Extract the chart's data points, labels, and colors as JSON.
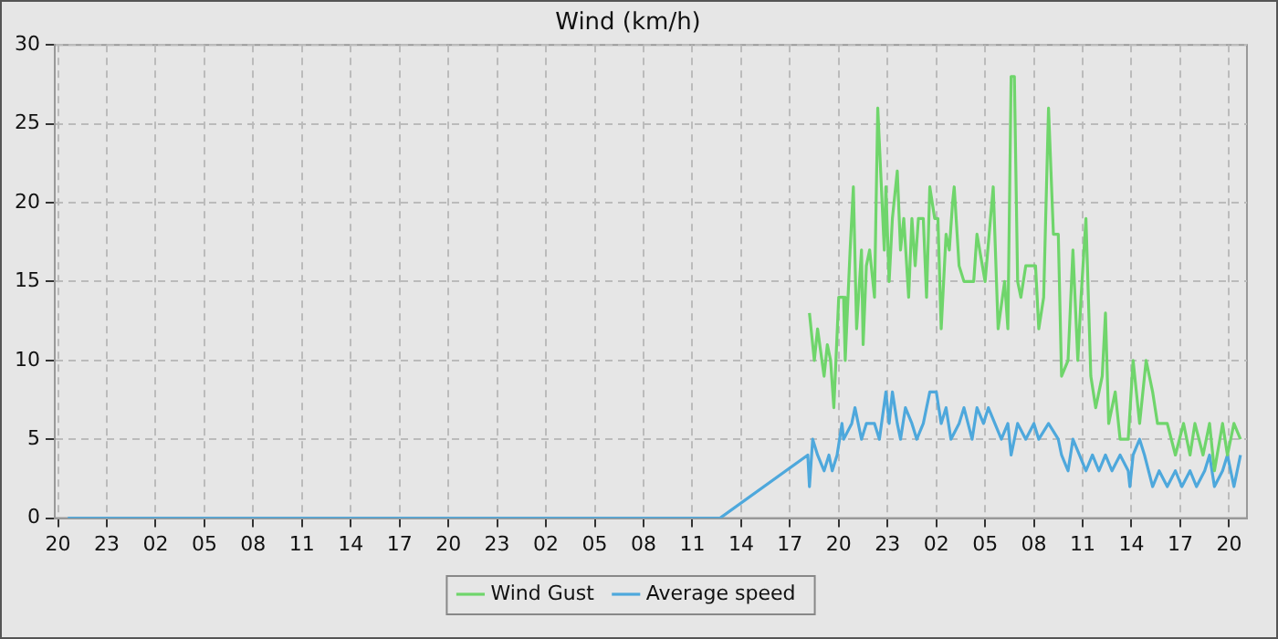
{
  "chart_data": {
    "type": "line",
    "title": "Wind (km/h)",
    "xlim": [
      "--01-01T19:48",
      "--01-04T21:06"
    ],
    "ylim": [
      0,
      30
    ],
    "xticks": [
      {
        "value": "--01-01T20:00",
        "label": "20"
      },
      {
        "value": "--01-01T23:00",
        "label": "23"
      },
      {
        "value": "--01-02T02:00",
        "label": "02"
      },
      {
        "value": "--01-02T05:00",
        "label": "05"
      },
      {
        "value": "--01-02T08:00",
        "label": "08"
      },
      {
        "value": "--01-02T11:00",
        "label": "11"
      },
      {
        "value": "--01-02T14:00",
        "label": "14"
      },
      {
        "value": "--01-02T17:00",
        "label": "17"
      },
      {
        "value": "--01-02T20:00",
        "label": "20"
      },
      {
        "value": "--01-02T23:00",
        "label": "23"
      },
      {
        "value": "--01-03T02:00",
        "label": "02"
      },
      {
        "value": "--01-03T05:00",
        "label": "05"
      },
      {
        "value": "--01-03T08:00",
        "label": "08"
      },
      {
        "value": "--01-03T11:00",
        "label": "11"
      },
      {
        "value": "--01-03T14:00",
        "label": "14"
      },
      {
        "value": "--01-03T17:00",
        "label": "17"
      },
      {
        "value": "--01-03T20:00",
        "label": "20"
      },
      {
        "value": "--01-03T23:00",
        "label": "23"
      },
      {
        "value": "--01-04T02:00",
        "label": "02"
      },
      {
        "value": "--01-04T05:00",
        "label": "05"
      },
      {
        "value": "--01-04T08:00",
        "label": "08"
      },
      {
        "value": "--01-04T11:00",
        "label": "11"
      },
      {
        "value": "--01-04T14:00",
        "label": "14"
      },
      {
        "value": "--01-04T17:00",
        "label": "17"
      },
      {
        "value": "--01-04T20:00",
        "label": "20"
      }
    ],
    "yticks": [
      0,
      5,
      10,
      15,
      20,
      25,
      30
    ],
    "grid": true,
    "legend": "bottom",
    "marker": "none",
    "line_style": "solid",
    "series": [
      {
        "name": "Wind Gust",
        "color": "#6fd56b",
        "x": [
          "--01-03T18:12",
          "--01-03T18:30",
          "--01-03T18:42",
          "--01-03T19:06",
          "--01-03T19:18",
          "--01-03T19:30",
          "--01-03T19:42",
          "--01-03T20:00",
          "--01-03T20:18",
          "--01-03T20:24",
          "--01-03T20:42",
          "--01-03T20:54",
          "--01-03T21:06",
          "--01-03T21:24",
          "--01-03T21:30",
          "--01-03T21:42",
          "--01-03T21:54",
          "--01-03T22:12",
          "--01-03T22:24",
          "--01-03T22:48",
          "--01-03T22:54",
          "--01-03T23:06",
          "--01-03T23:18",
          "--01-03T23:36",
          "--01-03T23:48",
          "--01-04T00:00",
          "--01-04T00:18",
          "--01-04T00:30",
          "--01-04T00:42",
          "--01-04T00:54",
          "--01-04T01:12",
          "--01-04T01:24",
          "--01-04T01:36",
          "--01-04T01:54",
          "--01-04T02:06",
          "--01-04T02:18",
          "--01-04T02:36",
          "--01-04T02:48",
          "--01-04T03:00",
          "--01-04T03:06",
          "--01-04T03:24",
          "--01-04T03:42",
          "--01-04T04:18",
          "--01-04T04:30",
          "--01-04T05:00",
          "--01-04T05:30",
          "--01-04T05:48",
          "--01-04T06:12",
          "--01-04T06:24",
          "--01-04T06:36",
          "--01-04T06:48",
          "--01-04T07:00",
          "--01-04T07:12",
          "--01-04T07:30",
          "--01-04T08:06",
          "--01-04T08:18",
          "--01-04T08:36",
          "--01-04T08:54",
          "--01-04T09:12",
          "--01-04T09:30",
          "--01-04T09:42",
          "--01-04T10:06",
          "--01-04T10:24",
          "--01-04T10:42",
          "--01-04T10:54",
          "--01-04T11:12",
          "--01-04T11:30",
          "--01-04T11:48",
          "--01-04T12:12",
          "--01-04T12:24",
          "--01-04T12:36",
          "--01-04T13:00",
          "--01-04T13:18",
          "--01-04T13:48",
          "--01-04T14:06",
          "--01-04T14:30",
          "--01-04T14:54",
          "--01-04T15:18",
          "--01-04T15:36",
          "--01-04T16:12",
          "--01-04T16:42",
          "--01-04T17:12",
          "--01-04T17:36",
          "--01-04T17:54",
          "--01-04T18:24",
          "--01-04T18:48",
          "--01-04T19:06",
          "--01-04T19:36",
          "--01-04T19:54",
          "--01-04T20:18",
          "--01-04T20:42"
        ],
        "values": [
          13,
          10,
          12,
          9,
          11,
          10,
          7,
          14,
          14,
          10,
          17,
          21,
          12,
          17,
          11,
          16,
          17,
          14,
          26,
          17,
          21,
          15,
          19,
          22,
          17,
          19,
          14,
          19,
          16,
          19,
          19,
          14,
          21,
          19,
          19,
          12,
          18,
          17,
          20,
          21,
          16,
          15,
          15,
          18,
          15,
          21,
          12,
          15,
          12,
          28,
          28,
          15,
          14,
          16,
          16,
          12,
          14,
          26,
          18,
          18,
          9,
          10,
          17,
          10,
          14,
          19,
          9,
          7,
          9,
          13,
          6,
          8,
          5,
          5,
          10,
          6,
          10,
          8,
          6,
          6,
          4,
          6,
          4,
          6,
          4,
          6,
          3,
          6,
          4,
          6,
          5
        ]
      },
      {
        "name": "Average speed",
        "color": "#4ea8dc",
        "x": [
          "--01-01T20:36",
          "--01-03T12:42",
          "--01-03T18:06",
          "--01-03T18:12",
          "--01-03T18:24",
          "--01-03T18:42",
          "--01-03T19:06",
          "--01-03T19:24",
          "--01-03T19:36",
          "--01-03T19:54",
          "--01-03T20:12",
          "--01-03T20:18",
          "--01-03T20:48",
          "--01-03T21:00",
          "--01-03T21:24",
          "--01-03T21:42",
          "--01-03T22:12",
          "--01-03T22:30",
          "--01-03T22:54",
          "--01-03T23:06",
          "--01-03T23:18",
          "--01-03T23:36",
          "--01-03T23:48",
          "--01-04T00:06",
          "--01-04T00:30",
          "--01-04T00:48",
          "--01-04T01:12",
          "--01-04T01:36",
          "--01-04T02:00",
          "--01-04T02:18",
          "--01-04T02:36",
          "--01-04T02:54",
          "--01-04T03:24",
          "--01-04T03:42",
          "--01-04T04:12",
          "--01-04T04:30",
          "--01-04T04:54",
          "--01-04T05:12",
          "--01-04T05:36",
          "--01-04T06:00",
          "--01-04T06:24",
          "--01-04T06:36",
          "--01-04T07:00",
          "--01-04T07:30",
          "--01-04T08:00",
          "--01-04T08:18",
          "--01-04T08:54",
          "--01-04T09:30",
          "--01-04T09:42",
          "--01-04T10:06",
          "--01-04T10:24",
          "--01-04T10:48",
          "--01-04T11:12",
          "--01-04T11:36",
          "--01-04T12:00",
          "--01-04T12:24",
          "--01-04T12:48",
          "--01-04T13:18",
          "--01-04T13:48",
          "--01-04T13:54",
          "--01-04T14:06",
          "--01-04T14:30",
          "--01-04T14:48",
          "--01-04T15:18",
          "--01-04T15:42",
          "--01-04T16:12",
          "--01-04T16:42",
          "--01-04T17:06",
          "--01-04T17:36",
          "--01-04T18:00",
          "--01-04T18:30",
          "--01-04T18:48",
          "--01-04T19:06",
          "--01-04T19:36",
          "--01-04T19:54",
          "--01-04T20:18",
          "--01-04T20:42"
        ],
        "values": [
          0,
          0,
          4,
          2,
          5,
          4,
          3,
          4,
          3,
          4,
          6,
          5,
          6,
          7,
          5,
          6,
          6,
          5,
          8,
          6,
          8,
          6,
          5,
          7,
          6,
          5,
          6,
          8,
          8,
          6,
          7,
          5,
          6,
          7,
          5,
          7,
          6,
          7,
          6,
          5,
          6,
          4,
          6,
          5,
          6,
          5,
          6,
          5,
          4,
          3,
          5,
          4,
          3,
          4,
          3,
          4,
          3,
          4,
          3,
          2,
          4,
          5,
          4,
          2,
          3,
          2,
          3,
          2,
          3,
          2,
          3,
          4,
          2,
          3,
          4,
          2,
          4
        ]
      }
    ]
  }
}
